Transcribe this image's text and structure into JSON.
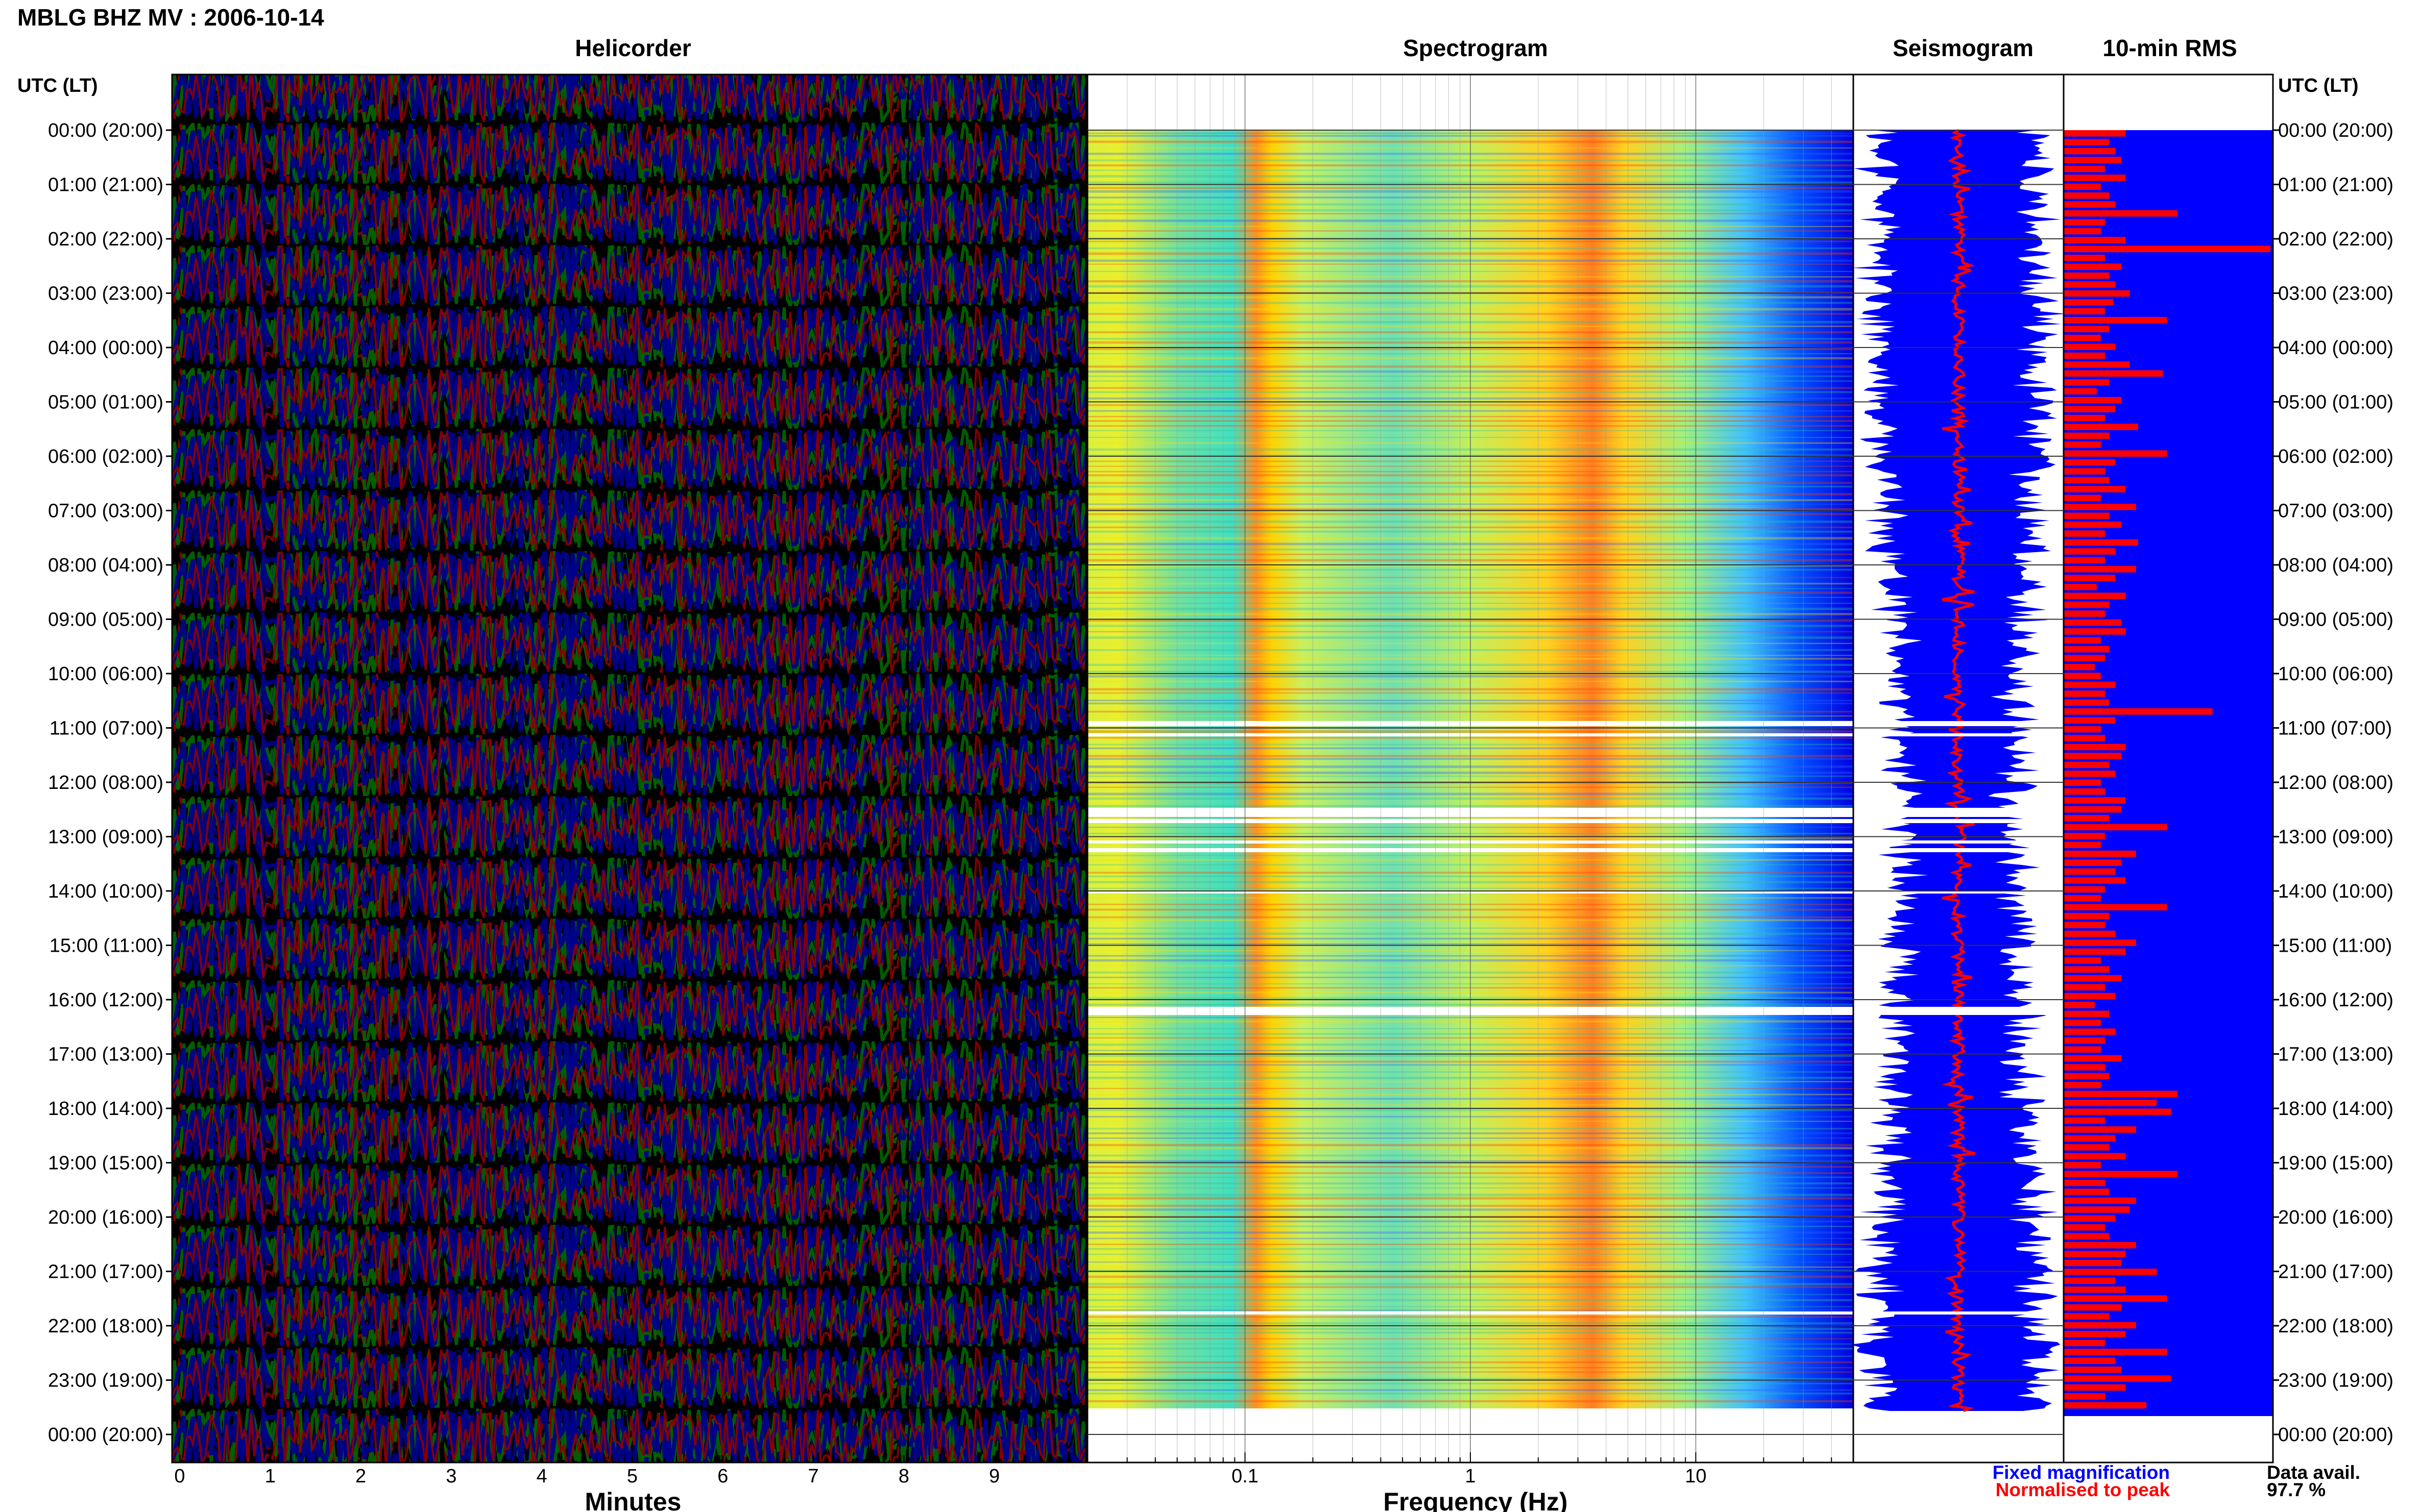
{
  "header": {
    "title": "MBLG BHZ MV : 2006-10-14"
  },
  "panels": {
    "helicorder": "Helicorder",
    "spectrogram": "Spectrogram",
    "seismogram": "Seismogram",
    "rms": "10-min RMS"
  },
  "axis": {
    "time_header": "UTC (LT)",
    "time_labels": [
      "00:00 (20:00)",
      "01:00 (21:00)",
      "02:00 (22:00)",
      "03:00 (23:00)",
      "04:00 (00:00)",
      "05:00 (01:00)",
      "06:00 (02:00)",
      "07:00 (03:00)",
      "08:00 (04:00)",
      "09:00 (05:00)",
      "10:00 (06:00)",
      "11:00 (07:00)",
      "12:00 (08:00)",
      "13:00 (09:00)",
      "14:00 (10:00)",
      "15:00 (11:00)",
      "16:00 (12:00)",
      "17:00 (13:00)",
      "18:00 (14:00)",
      "19:00 (15:00)",
      "20:00 (16:00)",
      "21:00 (17:00)",
      "22:00 (18:00)",
      "23:00 (19:00)",
      "00:00 (20:00)"
    ],
    "minutes_label": "Minutes",
    "minutes_ticks": [
      "0",
      "1",
      "2",
      "3",
      "4",
      "5",
      "6",
      "7",
      "8",
      "9"
    ],
    "frequency_label": "Frequency (Hz)",
    "frequency_ticks": [
      "0.1",
      "1",
      "10"
    ]
  },
  "legend": {
    "fixed": "Fixed magnification",
    "normalised": "Normalised to peak",
    "fixed_color": "#0000ff",
    "normalised_color": "#ff0000"
  },
  "availability": {
    "label": "Data avail.",
    "value": "97.7 %"
  },
  "colors": {
    "helicorder_traces": [
      "#000000",
      "#8b0000",
      "#006400",
      "#00008b"
    ],
    "spectrogram_scale": [
      "#0000ff",
      "#00c0ff",
      "#40e0d0",
      "#ffff00",
      "#ff8000",
      "#ff0000"
    ],
    "rms_bar": "#ff0000",
    "rms_background": "#0000ff"
  },
  "chart_data": [
    {
      "type": "line",
      "panel": "Helicorder",
      "title": "Helicorder",
      "xlabel": "Minutes",
      "xlim": [
        0,
        10
      ],
      "ylabel": "UTC (LT)",
      "rows": 144,
      "grid": false
    },
    {
      "type": "heatmap",
      "panel": "Spectrogram",
      "title": "Spectrogram",
      "xlabel": "Frequency (Hz)",
      "xscale": "log",
      "xlim": [
        0.02,
        50
      ],
      "peak_band_hz": [
        3,
        7
      ],
      "secondary_band_hz": [
        0.12,
        0.17
      ]
    },
    {
      "type": "line",
      "panel": "Seismogram",
      "title": "Seismogram",
      "series": [
        {
          "name": "Fixed magnification"
        },
        {
          "name": "Normalised to peak"
        }
      ]
    },
    {
      "type": "bar",
      "panel": "10-min RMS",
      "title": "10-min RMS",
      "orientation": "horizontal",
      "values": [
        0.3,
        0.22,
        0.25,
        0.28,
        0.2,
        0.3,
        0.18,
        0.22,
        0.25,
        0.55,
        0.2,
        0.18,
        0.3,
        1.0,
        0.2,
        0.28,
        0.22,
        0.25,
        0.32,
        0.24,
        0.2,
        0.5,
        0.22,
        0.18,
        0.25,
        0.2,
        0.32,
        0.48,
        0.22,
        0.16,
        0.28,
        0.25,
        0.2,
        0.36,
        0.22,
        0.18,
        0.5,
        0.25,
        0.2,
        0.22,
        0.3,
        0.18,
        0.35,
        0.22,
        0.28,
        0.2,
        0.36,
        0.25,
        0.2,
        0.35,
        0.25,
        0.16,
        0.3,
        0.22,
        0.2,
        0.28,
        0.3,
        0.18,
        0.22,
        0.2,
        0.15,
        0.18,
        0.25,
        0.2,
        0.22,
        0.72,
        0.25,
        0.18,
        0.2,
        0.3,
        0.28,
        0.22,
        0.25,
        0.18,
        0.2,
        0.3,
        0.28,
        0.22,
        0.5,
        0.2,
        0.18,
        0.35,
        0.28,
        0.25,
        0.3,
        0.2,
        0.18,
        0.5,
        0.22,
        0.2,
        0.25,
        0.35,
        0.3,
        0.18,
        0.22,
        0.28,
        0.2,
        0.25,
        0.15,
        0.22,
        0.18,
        0.25,
        0.2,
        0.18,
        0.28,
        0.2,
        0.22,
        0.18,
        0.55,
        0.45,
        0.52,
        0.2,
        0.35,
        0.25,
        0.22,
        0.3,
        0.18,
        0.55,
        0.2,
        0.22,
        0.35,
        0.32,
        0.25,
        0.2,
        0.22,
        0.35,
        0.3,
        0.28,
        0.45,
        0.25,
        0.3,
        0.5,
        0.28,
        0.22,
        0.35,
        0.3,
        0.2,
        0.5,
        0.25,
        0.28,
        0.52,
        0.3,
        0.2,
        0.4
      ]
    }
  ]
}
